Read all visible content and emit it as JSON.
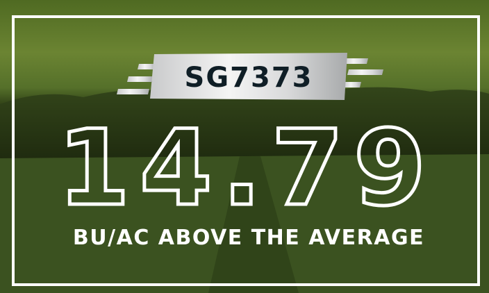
{
  "badge": {
    "label": "SG7373"
  },
  "headline": {
    "value": 14.79
  },
  "subtitle": "BU/AC ABOVE THE AVERAGE"
}
